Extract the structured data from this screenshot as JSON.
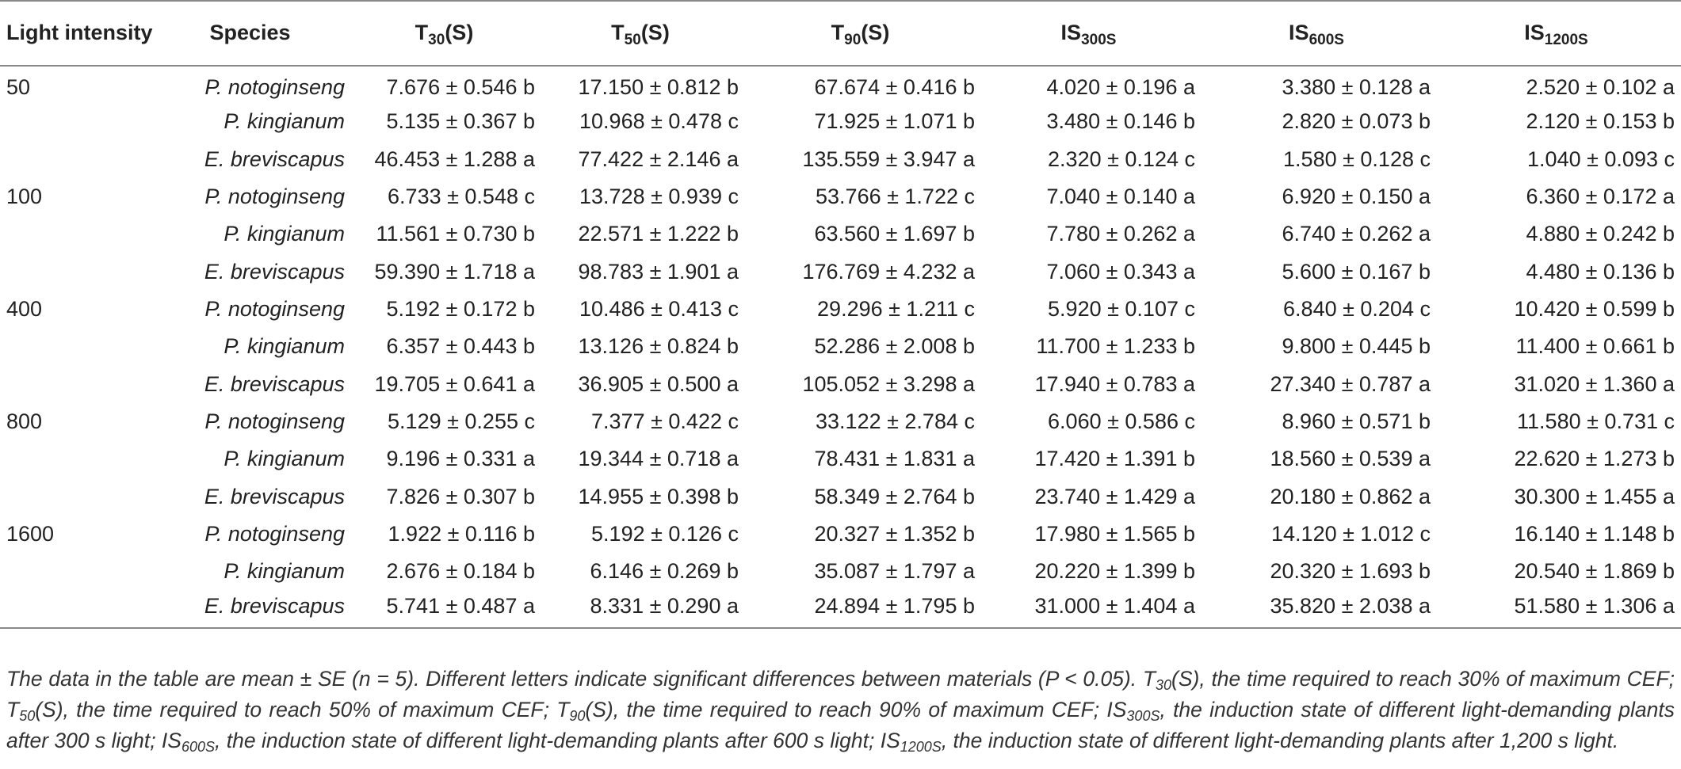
{
  "table": {
    "headers": {
      "light_intensity": "Light intensity",
      "species": "Species",
      "t30": {
        "main": "T",
        "sub": "30",
        "suffix": "(S)"
      },
      "t50": {
        "main": "T",
        "sub": "50",
        "suffix": "(S)"
      },
      "t90": {
        "main": "T",
        "sub": "90",
        "suffix": "(S)"
      },
      "is300": {
        "main": "IS",
        "sub": "300S"
      },
      "is600": {
        "main": "IS",
        "sub": "600S"
      },
      "is1200": {
        "main": "IS",
        "sub": "1200S"
      }
    },
    "rows": [
      {
        "light": "50",
        "species": "P. notoginseng",
        "vals": [
          "7.676 ± 0.546 b",
          "17.150 ± 0.812 b",
          "67.674 ± 0.416 b",
          "4.020 ± 0.196 a",
          "3.380 ± 0.128 a",
          "2.520 ± 0.102 a"
        ]
      },
      {
        "light": "",
        "species": "P. kingianum",
        "vals": [
          "5.135 ± 0.367 b",
          "10.968 ± 0.478 c",
          "71.925 ± 1.071 b",
          "3.480 ± 0.146 b",
          "2.820 ± 0.073 b",
          "2.120 ± 0.153 b"
        ]
      },
      {
        "light": "",
        "species": "E. breviscapus",
        "vals": [
          "46.453 ± 1.288 a",
          "77.422 ± 2.146 a",
          "135.559 ± 3.947 a",
          "2.320 ± 0.124 c",
          "1.580 ± 0.128 c",
          "1.040 ± 0.093 c"
        ]
      },
      {
        "light": "100",
        "species": "P. notoginseng",
        "vals": [
          "6.733 ± 0.548 c",
          "13.728 ± 0.939 c",
          "53.766 ± 1.722 c",
          "7.040 ± 0.140 a",
          "6.920 ± 0.150 a",
          "6.360 ± 0.172 a"
        ]
      },
      {
        "light": "",
        "species": "P. kingianum",
        "vals": [
          "11.561 ± 0.730 b",
          "22.571 ± 1.222 b",
          "63.560 ± 1.697 b",
          "7.780 ± 0.262 a",
          "6.740 ± 0.262 a",
          "4.880 ± 0.242 b"
        ]
      },
      {
        "light": "",
        "species": "E. breviscapus",
        "vals": [
          "59.390 ± 1.718 a",
          "98.783 ± 1.901 a",
          "176.769 ± 4.232 a",
          "7.060 ± 0.343 a",
          "5.600 ± 0.167 b",
          "4.480 ± 0.136 b"
        ]
      },
      {
        "light": "400",
        "species": "P. notoginseng",
        "vals": [
          "5.192 ± 0.172 b",
          "10.486 ± 0.413 c",
          "29.296 ± 1.211 c",
          "5.920 ± 0.107 c",
          "6.840 ± 0.204 c",
          "10.420 ± 0.599 b"
        ]
      },
      {
        "light": "",
        "species": "P. kingianum",
        "vals": [
          "6.357 ± 0.443 b",
          "13.126 ± 0.824 b",
          "52.286 ± 2.008 b",
          "11.700 ± 1.233 b",
          "9.800 ± 0.445 b",
          "11.400 ± 0.661 b"
        ]
      },
      {
        "light": "",
        "species": "E. breviscapus",
        "vals": [
          "19.705 ± 0.641 a",
          "36.905 ± 0.500 a",
          "105.052 ± 3.298 a",
          "17.940 ± 0.783 a",
          "27.340 ± 0.787 a",
          "31.020 ± 1.360 a"
        ]
      },
      {
        "light": "800",
        "species": "P. notoginseng",
        "vals": [
          "5.129 ± 0.255 c",
          "7.377 ± 0.422 c",
          "33.122 ± 2.784 c",
          "6.060 ± 0.586 c",
          "8.960 ± 0.571 b",
          "11.580 ± 0.731 c"
        ]
      },
      {
        "light": "",
        "species": "P. kingianum",
        "vals": [
          "9.196 ± 0.331 a",
          "19.344 ± 0.718 a",
          "78.431 ± 1.831 a",
          "17.420 ± 1.391 b",
          "18.560 ± 0.539 a",
          "22.620 ± 1.273 b"
        ]
      },
      {
        "light": "",
        "species": "E. breviscapus",
        "vals": [
          "7.826 ± 0.307 b",
          "14.955 ± 0.398 b",
          "58.349 ± 2.764 b",
          "23.740 ± 1.429 a",
          "20.180 ± 0.862 a",
          "30.300 ± 1.455 a"
        ]
      },
      {
        "light": "1600",
        "species": "P. notoginseng",
        "vals": [
          "1.922 ± 0.116 b",
          "5.192 ± 0.126 c",
          "20.327 ± 1.352 b",
          "17.980 ± 1.565 b",
          "14.120 ± 1.012 c",
          "16.140 ± 1.148 b"
        ]
      },
      {
        "light": "",
        "species": "P. kingianum",
        "vals": [
          "2.676 ± 0.184 b",
          "6.146 ± 0.269 b",
          "35.087 ± 1.797 a",
          "20.220 ± 1.399 b",
          "20.320 ± 1.693 b",
          "20.540 ± 1.869 b"
        ]
      },
      {
        "light": "",
        "species": "E. breviscapus",
        "vals": [
          "5.741 ± 0.487 a",
          "8.331 ± 0.290 a",
          "24.894 ± 1.795 b",
          "31.000 ± 1.404 a",
          "35.820 ± 2.038 a",
          "51.580 ± 1.306 a"
        ]
      }
    ]
  },
  "footnote": {
    "p1": "The data in the table are mean ± SE (n = 5). Different letters indicate significant differences between materials (P < 0.05). ",
    "p2_main": "T",
    "p2_sub": "30",
    "p2_text": "(S), the time required to reach 30% of maximum CEF; ",
    "p3_main": "T",
    "p3_sub": "50",
    "p3_text": "(S), the time required to reach 50% of maximum CEF; ",
    "p4_main": "T",
    "p4_sub": "90",
    "p4_text": "(S), the time required to reach 90% of maximum CEF; ",
    "p5_main": "IS",
    "p5_sub": "300S",
    "p5_text": ", the induction state of different light-demanding plants after 300 s light; ",
    "p6_main": "IS",
    "p6_sub": "600S",
    "p6_text": ", the induction state of different light-demanding plants after 600 s light; ",
    "p7_main": "IS",
    "p7_sub": "1200S",
    "p7_text": ", the induction state of different light-demanding plants after 1,200 s light."
  }
}
